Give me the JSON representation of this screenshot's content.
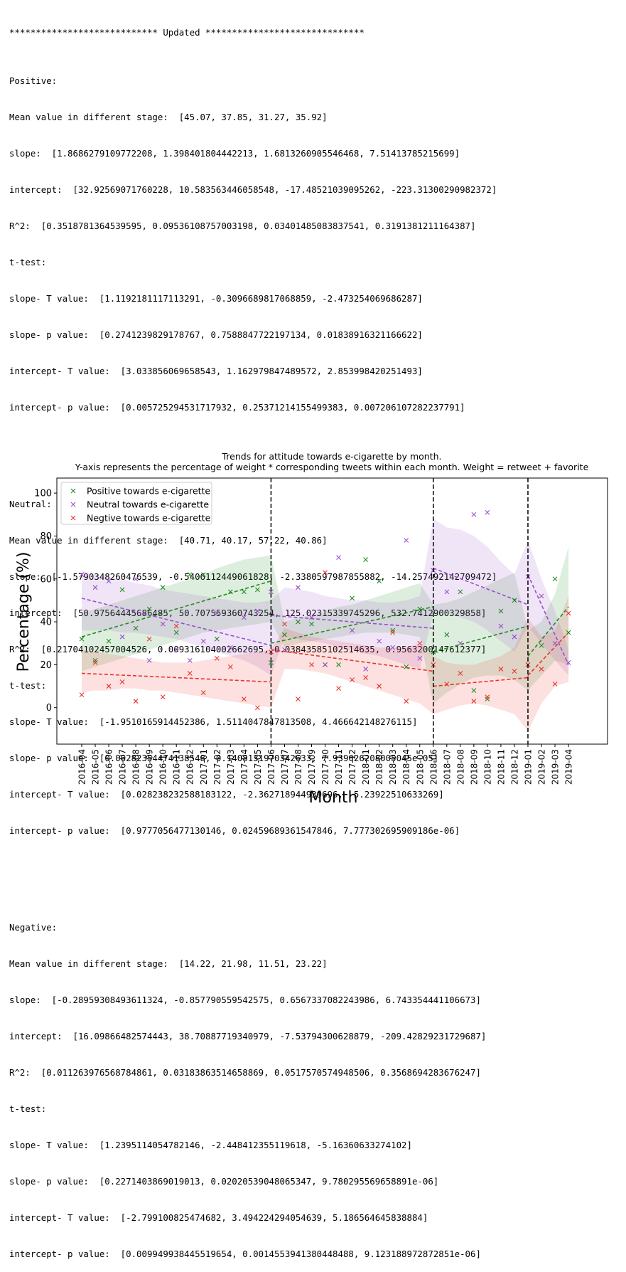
{
  "console": {
    "header": "**************************** Updated ******************************",
    "sections": [
      {
        "name": "Positive:",
        "mean": "Mean value in different stage:  [45.07, 37.85, 31.27, 35.92]",
        "slope": "slope:  [1.8686279109772208, 1.398401804442213, 1.681326090554646​8, 7.51413785215699]",
        "intercept": "intercept:  [32.92569071760228, 10.583563446058548, -17.48521039095262, -223.31300290982372]",
        "r2": "R^2:  [0.3518781364539595, 0.09536108757003198, 0.03401485083837541, 0.3191381211164387]",
        "ttest": "t-test:",
        "slope_t": "slope- T value:  [1.1192181117113291, -0.3096689817068859, -2.473254069686287]",
        "slope_p": "slope- p value:  [0.2741239829178767, 0.7588847722197134, 0.01838916321166622]",
        "intercept_t": "intercept- T value:  [3.033856069658543, 1.162979847489572, 2.853998420251493]",
        "intercept_p": "intercept- p value:  [0.005725294531717932, 0.25371214155499383, 0.007206107282237791]"
      },
      {
        "name": "Neutral:",
        "mean": "Mean value in different stage:  [40.71, 40.17, 57.22, 40.86]",
        "slope": "slope:  [-1.5790348260476539, -0.5406112449061828, -2.3380597987855882, -14.257492142709472]",
        "intercept": "intercept:  [50.97564445686485, 50.707559360743254, 125.02315339745296, 532.7412900329858]",
        "r2": "R^2:  [0.21704102457004526, 0.009316104002662695, 0.03843585102514635, 0.9563200147612377]",
        "ttest": "t-test:",
        "slope_t": "slope- T value:  [-1.9510165914452386, 1.5114047847813508, 4.466642148276115]",
        "slope_p": "slope- p value:  [0.06282354474138548, 0.1408131970342633, 7.939026208005045e-05]",
        "intercept_t": "intercept- T value:  [0.028238232588183122, -2.362718944939696, -5.23922510633269]",
        "intercept_p": "intercept- p value:  [0.9777056477130146, 0.02459689361547846, 7.777302695909186e-06]"
      },
      {
        "name": "Negative:",
        "mean": "Mean value in different stage:  [14.22, 21.98, 11.51, 23.22]",
        "slope": "slope:  [-0.28959308493611324, -0.857790559542575, 0.6567337082243986, 6.743354441106673]",
        "intercept": "intercept:  [16.09866482574443, 38.70887719340979, -7.53794300628879, -209.42829231729687]",
        "r2": "R^2:  [0.011263976568784861, 0.03183863514658869, 0.0517570574948506, 0.3568694283676247]",
        "ttest": "t-test:",
        "slope_t": "slope- T value:  [1.2395114054782146, -2.448412355119618, -5.16360633274102]",
        "slope_p": "slope- p value:  [0.2271403869019013, 0.02020539048065347, 9.780295569658891e-06]",
        "intercept_t": "intercept- T value:  [-2.799100825474682, 3.494224294054639, 5.186564645838884]",
        "intercept_p": "intercept- p value:  [0.009949938445519654, 0.0014553941380448488, 9.123188972872851e-06]"
      }
    ]
  },
  "chart_data": {
    "type": "scatter",
    "title": "Trends for attitude towards e-cigarette by month.",
    "subtitle": "Y-axis represents the percentage of weight * corresponding tweets within each month. Weight = retweet + favorite",
    "xlabel": "Month",
    "ylabel": "Percentage (%)",
    "ylim": [
      -17,
      107
    ],
    "yticks": [
      0,
      20,
      40,
      60,
      80,
      100
    ],
    "grid": false,
    "legend_position": "top-left",
    "categories": [
      "2016-04",
      "2016-05",
      "2016-06",
      "2016-07",
      "2016-08",
      "2016-09",
      "2016-10",
      "2016-11",
      "2016-12",
      "2017-01",
      "2017-02",
      "2017-03",
      "2017-04",
      "2017-05",
      "2017-06",
      "2017-07",
      "2017-08",
      "2017-09",
      "2017-10",
      "2017-11",
      "2017-12",
      "2018-01",
      "2018-02",
      "2018-03",
      "2018-04",
      "2018-05",
      "2018-06",
      "2018-07",
      "2018-08",
      "2018-09",
      "2018-10",
      "2018-11",
      "2018-12",
      "2019-01",
      "2019-02",
      "2019-03",
      "2019-04"
    ],
    "stage_boundaries": [
      "2017-06",
      "2018-06",
      "2019-01"
    ],
    "series": [
      {
        "name": "Positive towards e-cigarette",
        "color": "#1f8c1f",
        "marker": "x",
        "values": [
          32,
          22,
          31,
          55,
          37,
          46,
          56,
          35,
          62,
          62,
          32,
          54,
          54,
          55,
          21,
          34,
          40,
          39,
          20,
          20,
          51,
          69,
          59,
          36,
          19,
          46,
          26,
          34,
          54,
          8,
          4,
          45,
          50,
          20,
          29,
          60,
          35
        ],
        "trend_segments": [
          {
            "x_start": "2016-04",
            "x_end": "2017-06",
            "y_start": 33,
            "y_end": 59
          },
          {
            "x_start": "2017-06",
            "x_end": "2018-06",
            "y_start": 30,
            "y_end": 47
          },
          {
            "x_start": "2018-06",
            "x_end": "2019-01",
            "y_start": 26,
            "y_end": 38
          },
          {
            "x_start": "2019-01",
            "x_end": "2019-04",
            "y_start": 24,
            "y_end": 47
          }
        ],
        "band_low": [
          17,
          19,
          21,
          23,
          25,
          27,
          29,
          31,
          33,
          35,
          36,
          37,
          38,
          39,
          40,
          28,
          30,
          31,
          32,
          33,
          34,
          35,
          35,
          35,
          34,
          33,
          2,
          7,
          11,
          14,
          15,
          15,
          13,
          8,
          15,
          22,
          20
        ],
        "band_high": [
          44,
          46,
          48,
          50,
          52,
          54,
          56,
          58,
          60,
          62,
          65,
          67,
          69,
          70,
          71,
          40,
          42,
          43,
          45,
          47,
          48,
          50,
          52,
          54,
          56,
          58,
          48,
          49,
          51,
          54,
          57,
          60,
          63,
          36,
          40,
          53,
          75
        ]
      },
      {
        "name": "Neutral towards e-cigarette",
        "color": "#9b4fc8",
        "marker": "x",
        "values": [
          62,
          56,
          59,
          33,
          60,
          22,
          39,
          27,
          22,
          31,
          44,
          28,
          42,
          45,
          54,
          27,
          56,
          42,
          20,
          70,
          36,
          18,
          31,
          28,
          78,
          23,
          64,
          54,
          30,
          90,
          91,
          38,
          33,
          61,
          52,
          30,
          21
        ],
        "trend_segments": [
          {
            "x_start": "2016-04",
            "x_end": "2017-06",
            "y_start": 51,
            "y_end": 29
          },
          {
            "x_start": "2017-06",
            "x_end": "2018-06",
            "y_start": 43,
            "y_end": 37
          },
          {
            "x_start": "2018-06",
            "x_end": "2019-01",
            "y_start": 65,
            "y_end": 48
          },
          {
            "x_start": "2019-01",
            "x_end": "2019-04",
            "y_start": 62,
            "y_end": 20
          }
        ],
        "band_low": [
          36,
          36,
          36,
          35,
          35,
          34,
          33,
          32,
          30,
          28,
          26,
          24,
          22,
          19,
          15,
          33,
          32,
          31,
          30,
          28,
          27,
          25,
          24,
          22,
          20,
          18,
          44,
          44,
          42,
          40,
          36,
          31,
          26,
          38,
          30,
          22,
          15
        ],
        "band_high": [
          64,
          62,
          61,
          60,
          58,
          57,
          55,
          54,
          53,
          52,
          51,
          50,
          49,
          49,
          50,
          56,
          55,
          54,
          52,
          51,
          50,
          50,
          49,
          49,
          50,
          52,
          88,
          84,
          83,
          80,
          75,
          68,
          62,
          78,
          60,
          45,
          27
        ]
      },
      {
        "name": "Negtive towards e-cigarette",
        "color": "#e8342c",
        "marker": "x",
        "values": [
          6,
          21,
          10,
          12,
          3,
          32,
          5,
          38,
          16,
          7,
          23,
          19,
          4,
          0,
          26,
          39,
          4,
          20,
          63,
          9,
          13,
          14,
          10,
          35,
          3,
          30,
          20,
          11,
          16,
          3,
          5,
          18,
          17,
          20,
          18,
          11,
          44
        ],
        "trend_segments": [
          {
            "x_start": "2016-04",
            "x_end": "2017-06",
            "y_start": 16,
            "y_end": 12
          },
          {
            "x_start": "2017-06",
            "x_end": "2018-06",
            "y_start": 27,
            "y_end": 17
          },
          {
            "x_start": "2018-06",
            "x_end": "2019-01",
            "y_start": 10,
            "y_end": 14
          },
          {
            "x_start": "2019-01",
            "x_end": "2019-04",
            "y_start": 15,
            "y_end": 35
          }
        ],
        "band_low": [
          7,
          8,
          8,
          9,
          9,
          8,
          8,
          7,
          6,
          5,
          4,
          3,
          2,
          1,
          0,
          18,
          18,
          17,
          16,
          14,
          12,
          10,
          8,
          6,
          4,
          2,
          -3,
          -1,
          1,
          2,
          1,
          -1,
          -3,
          -11,
          2,
          10,
          12
        ],
        "band_high": [
          27,
          26,
          25,
          24,
          23,
          22,
          21,
          21,
          21,
          22,
          23,
          24,
          25,
          26,
          27,
          37,
          35,
          33,
          32,
          31,
          30,
          29,
          28,
          28,
          28,
          30,
          24,
          21,
          20,
          20,
          22,
          24,
          28,
          42,
          33,
          36,
          52
        ]
      }
    ]
  }
}
